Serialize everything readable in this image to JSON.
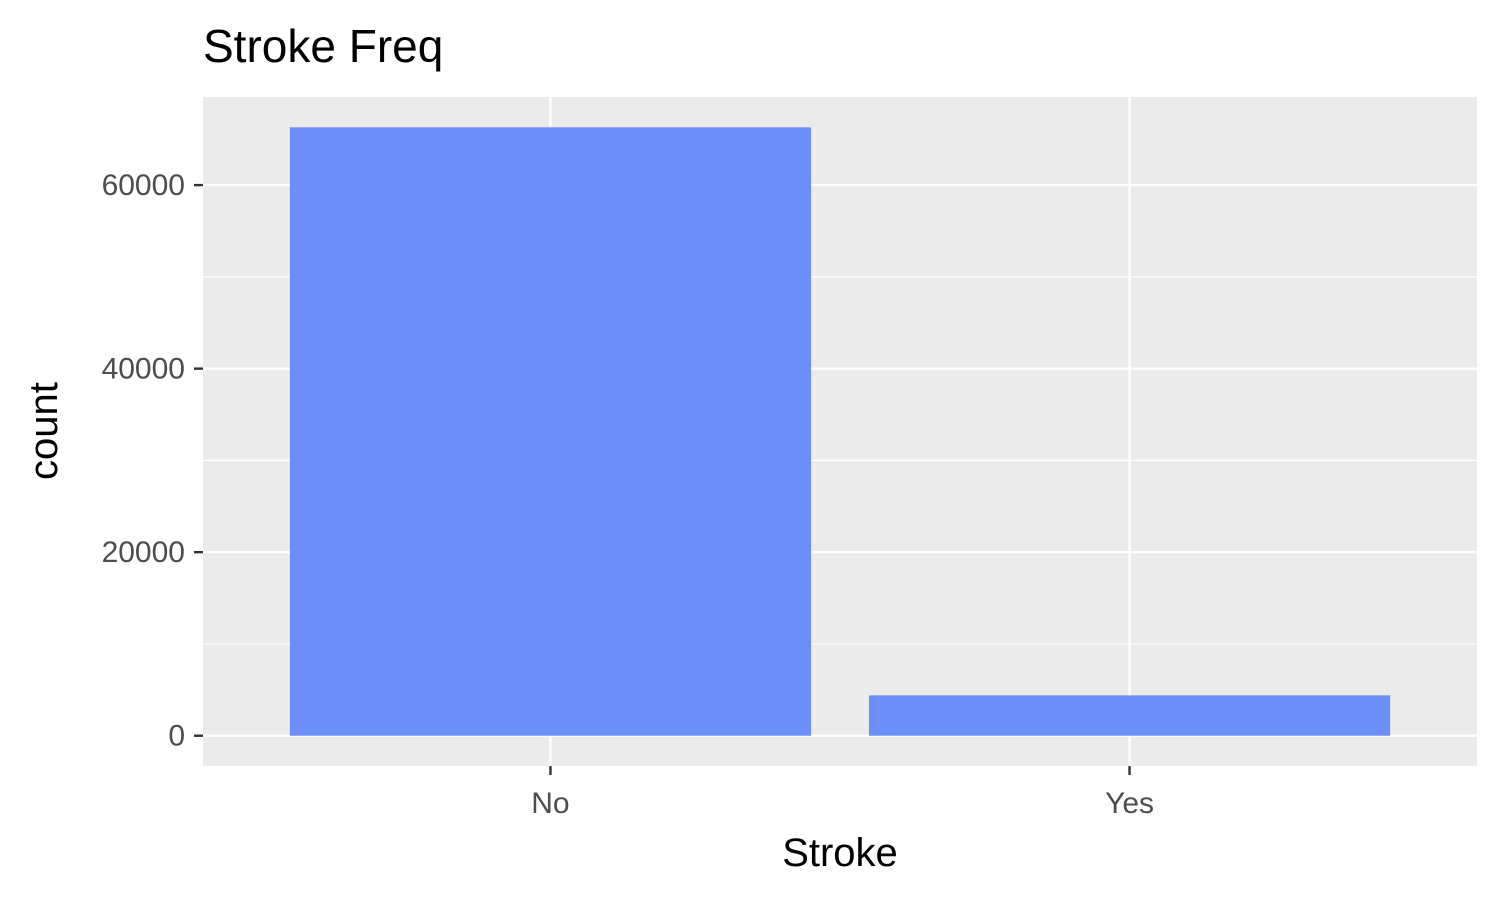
{
  "chart_data": {
    "type": "bar",
    "title": "Stroke Freq",
    "xlabel": "Stroke",
    "ylabel": "count",
    "categories": [
      "No",
      "Yes"
    ],
    "values": [
      66300,
      4400
    ],
    "ylim": [
      -3300,
      69600
    ],
    "yticks": [
      0,
      20000,
      40000,
      60000
    ],
    "ytick_labels": [
      "0",
      "20000",
      "40000",
      "60000"
    ],
    "grid": true,
    "panel_background": "#EBEBEB",
    "grid_color": "#FFFFFF",
    "bar_color": "#6C8EF9",
    "legend": "none"
  }
}
